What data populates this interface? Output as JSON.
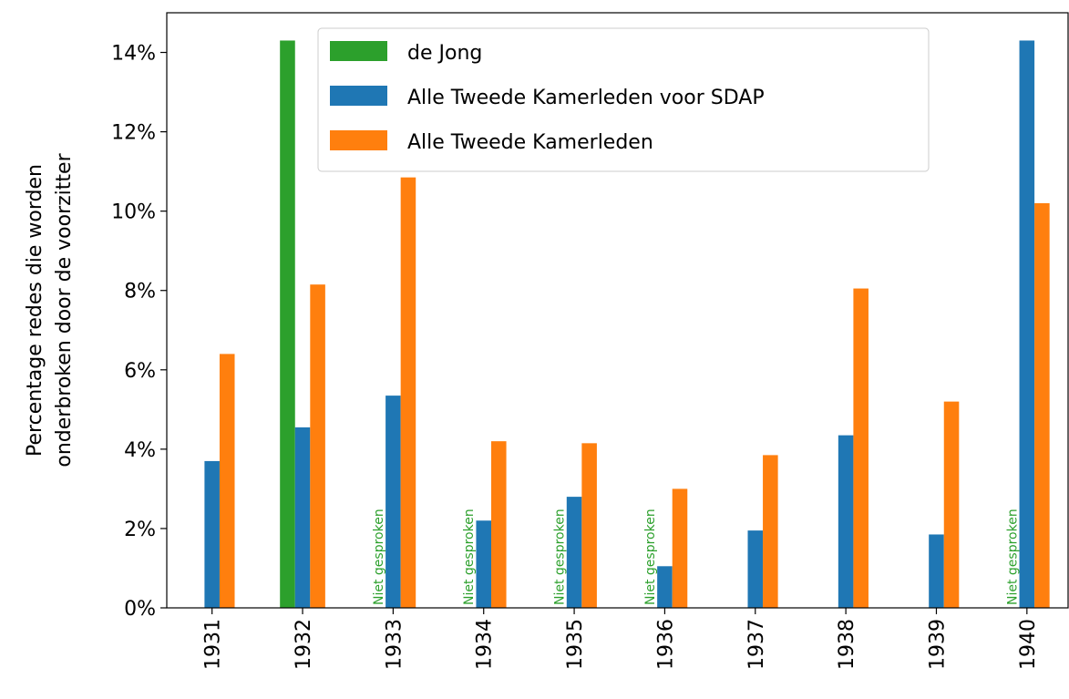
{
  "chart_data": {
    "type": "bar",
    "ylabel": [
      "Percentage redes die worden",
      "onderbroken door de voorzitter"
    ],
    "categories": [
      "1931",
      "1932",
      "1933",
      "1934",
      "1935",
      "1936",
      "1937",
      "1938",
      "1939",
      "1940"
    ],
    "series": [
      {
        "name": "de Jong",
        "color": "#2ca02c",
        "values": [
          null,
          14.3,
          null,
          null,
          null,
          null,
          null,
          null,
          null,
          null
        ],
        "value_labels": [
          null,
          null,
          "Niet gesproken",
          "Niet gesproken",
          "Niet gesproken",
          "Niet gesproken",
          null,
          null,
          null,
          "Niet gesproken"
        ]
      },
      {
        "name": "Alle Tweede Kamerleden voor SDAP",
        "color": "#1f77b4",
        "values": [
          3.7,
          4.55,
          5.35,
          2.2,
          2.8,
          1.05,
          1.95,
          4.35,
          1.85,
          14.3
        ]
      },
      {
        "name": "Alle Tweede Kamerleden",
        "color": "#ff7f0e",
        "values": [
          6.4,
          8.15,
          10.85,
          4.2,
          4.15,
          3.0,
          3.85,
          8.05,
          5.2,
          10.2
        ]
      }
    ],
    "ylim": [
      0,
      15
    ],
    "yticks": [
      {
        "value": 0,
        "label": "0%"
      },
      {
        "value": 2,
        "label": "2%"
      },
      {
        "value": 4,
        "label": "4%"
      },
      {
        "value": 6,
        "label": "6%"
      },
      {
        "value": 8,
        "label": "8%"
      },
      {
        "value": 10,
        "label": "10%"
      },
      {
        "value": 12,
        "label": "12%"
      },
      {
        "value": 14,
        "label": "14%"
      }
    ],
    "legend": "upper center"
  }
}
